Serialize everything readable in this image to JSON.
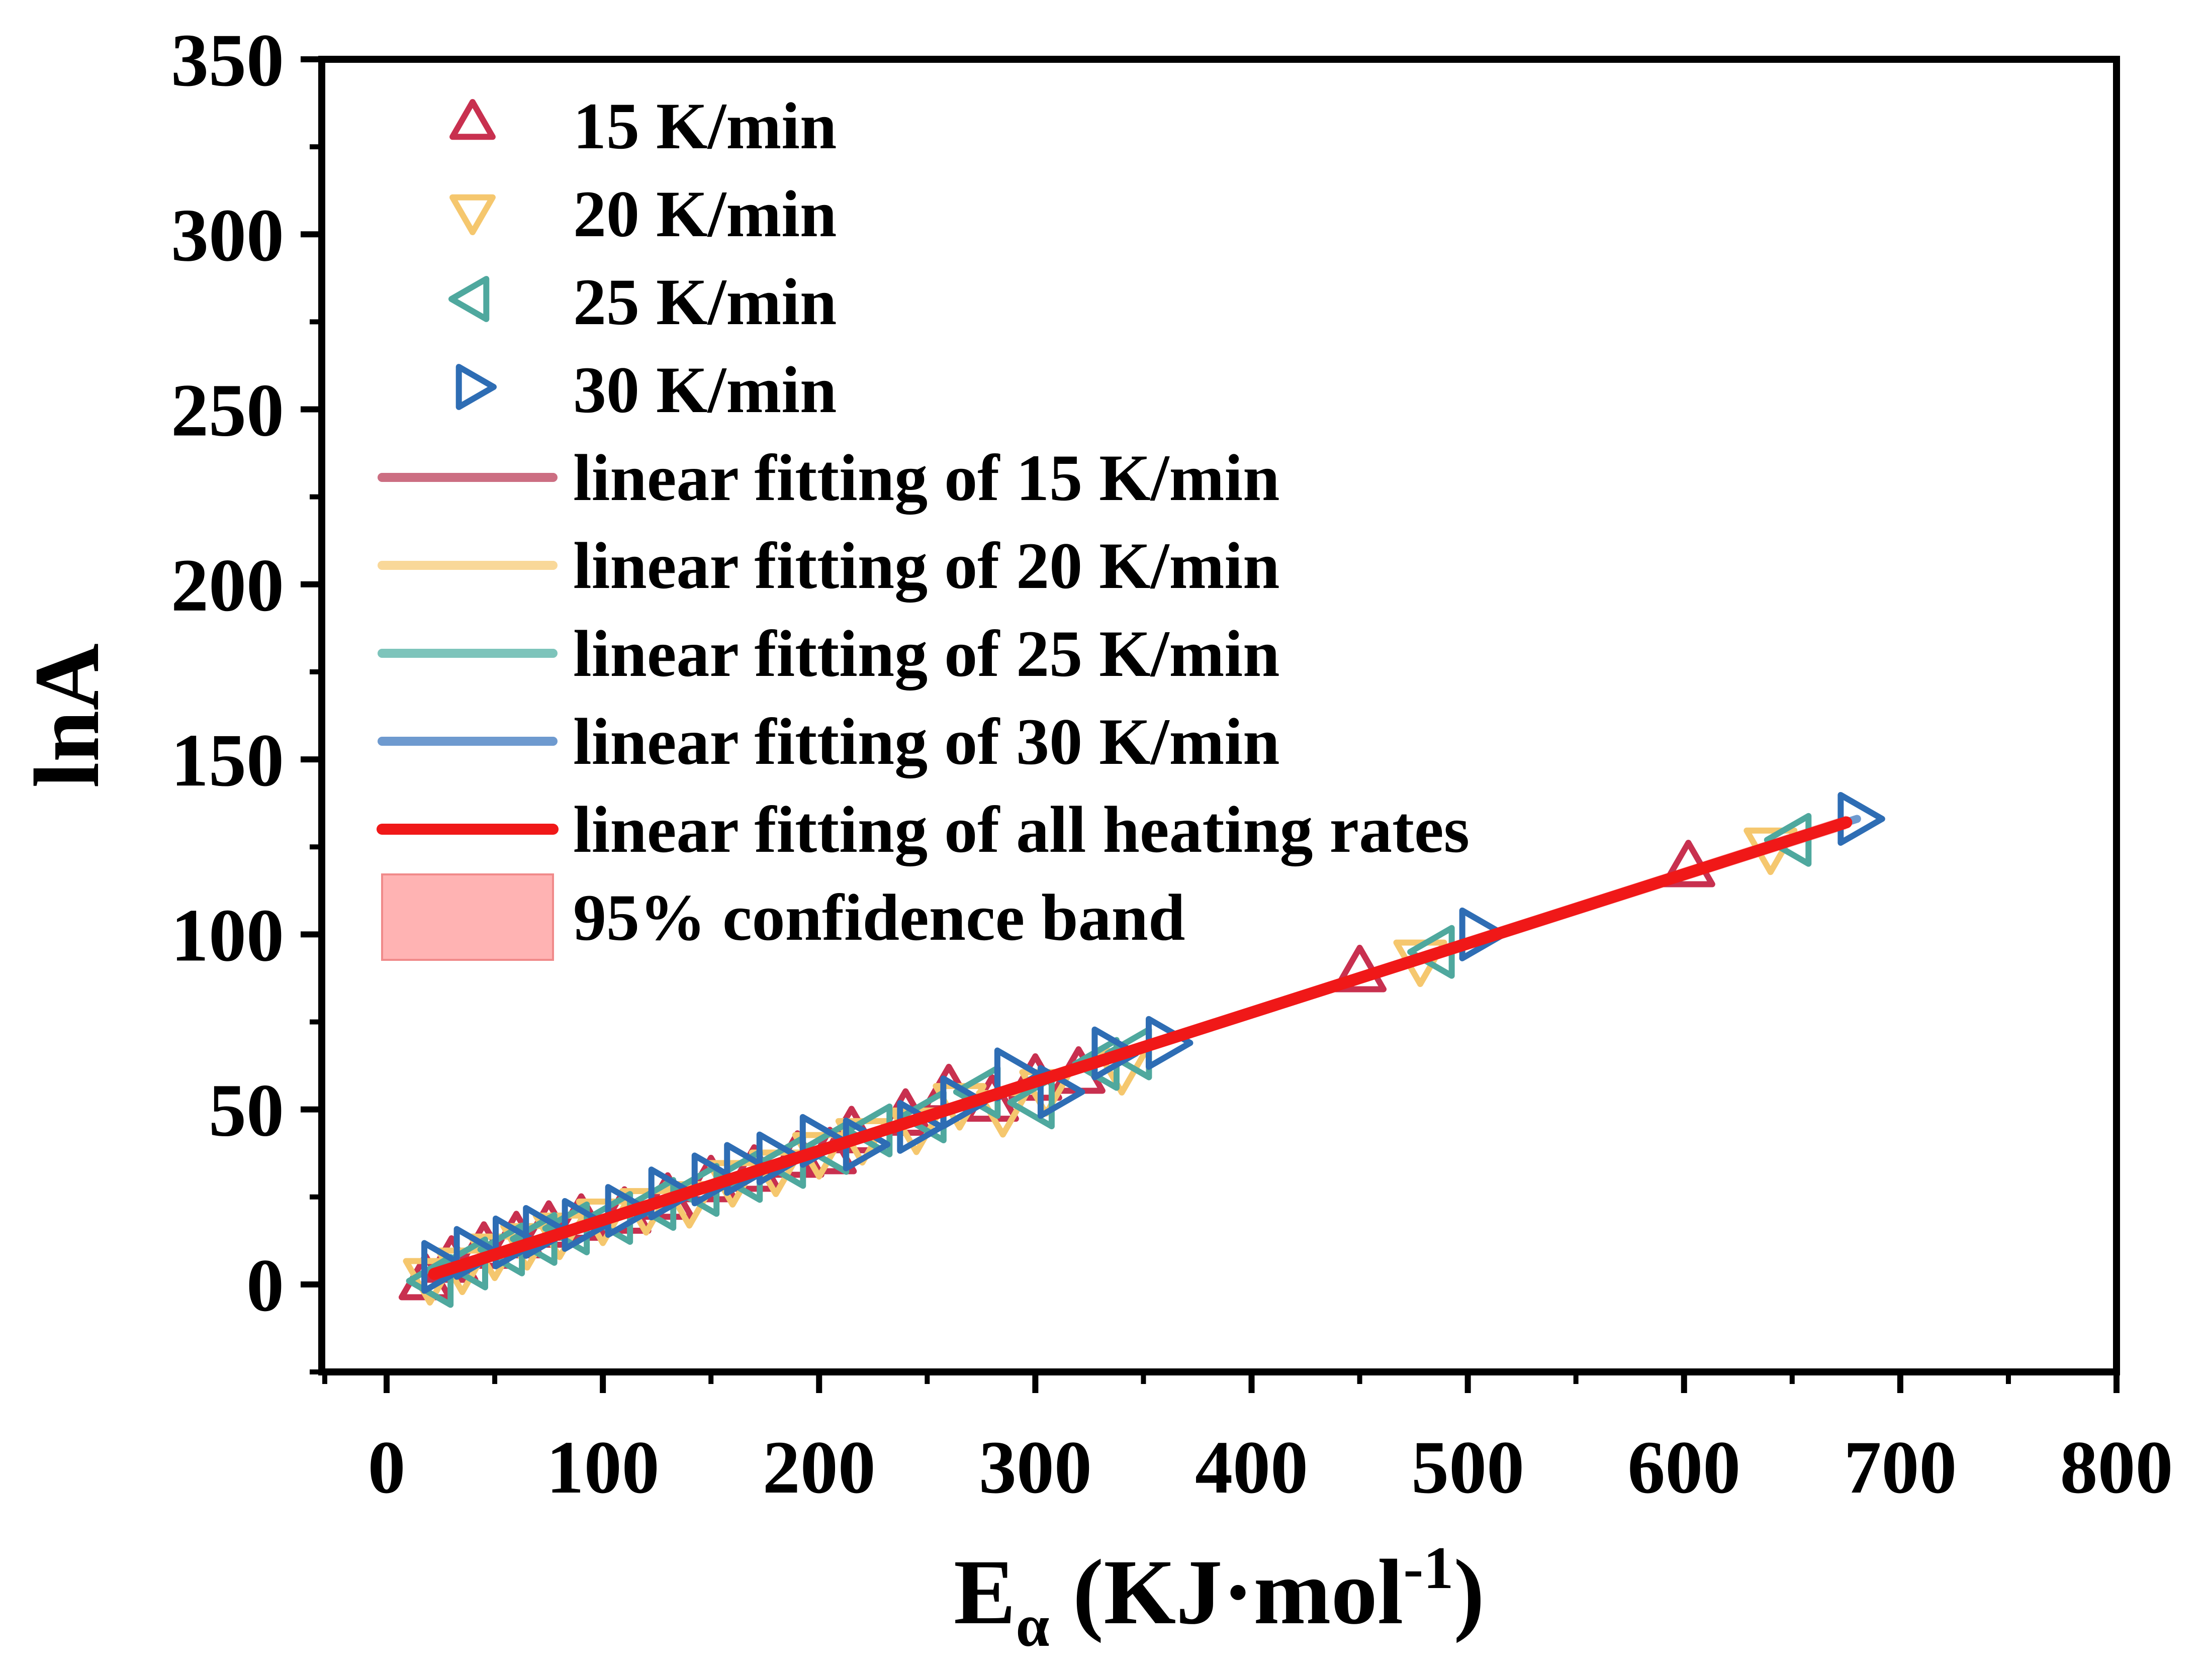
{
  "chart_data": {
    "type": "scatter",
    "title": "",
    "xlabel": {
      "main": "E",
      "sub": "α",
      "rest": " (KJ·mol",
      "sup": "-1",
      "close": ")"
    },
    "ylabel": "lnA",
    "xlim": [
      -30,
      800
    ],
    "ylim": [
      -25,
      350
    ],
    "x_ticks": [
      0,
      100,
      200,
      300,
      400,
      500,
      600,
      700,
      800
    ],
    "y_ticks": [
      0,
      50,
      100,
      150,
      200,
      250,
      300,
      350
    ],
    "x_ticks_text": [
      "0",
      "100",
      "200",
      "300",
      "400",
      "500",
      "600",
      "700",
      "800"
    ],
    "y_ticks_text": [
      "0",
      "50",
      "100",
      "150",
      "200",
      "250",
      "300",
      "350"
    ],
    "legend_position": "top-left",
    "series": [
      {
        "name": "15 K/min",
        "marker": "triangle-up",
        "color": "#C8304F",
        "points": [
          [
            18,
            1
          ],
          [
            30,
            6
          ],
          [
            45,
            10
          ],
          [
            60,
            13
          ],
          [
            75,
            16
          ],
          [
            90,
            18
          ],
          [
            110,
            20
          ],
          [
            130,
            24
          ],
          [
            150,
            29
          ],
          [
            170,
            32
          ],
          [
            190,
            36
          ],
          [
            205,
            37
          ],
          [
            215,
            43
          ],
          [
            240,
            48
          ],
          [
            260,
            55
          ],
          [
            280,
            52
          ],
          [
            300,
            58
          ],
          [
            320,
            60
          ],
          [
            450,
            89
          ],
          [
            602,
            119
          ]
        ]
      },
      {
        "name": "20 K/min",
        "marker": "triangle-down",
        "color": "#F5C76E",
        "points": [
          [
            20,
            2
          ],
          [
            35,
            5
          ],
          [
            50,
            9
          ],
          [
            65,
            12
          ],
          [
            80,
            15
          ],
          [
            100,
            19
          ],
          [
            120,
            22
          ],
          [
            140,
            24
          ],
          [
            160,
            30
          ],
          [
            180,
            33
          ],
          [
            200,
            38
          ],
          [
            220,
            42
          ],
          [
            245,
            45
          ],
          [
            265,
            52
          ],
          [
            285,
            50
          ],
          [
            305,
            56
          ],
          [
            340,
            62
          ],
          [
            478,
            93
          ],
          [
            640,
            125
          ]
        ]
      },
      {
        "name": "25 K/min",
        "marker": "triangle-left",
        "color": "#4FA89E",
        "points": [
          [
            22,
            1
          ],
          [
            38,
            6
          ],
          [
            55,
            10
          ],
          [
            70,
            13
          ],
          [
            85,
            16
          ],
          [
            105,
            19
          ],
          [
            125,
            23
          ],
          [
            145,
            27
          ],
          [
            165,
            31
          ],
          [
            185,
            35
          ],
          [
            205,
            39
          ],
          [
            225,
            44
          ],
          [
            250,
            48
          ],
          [
            275,
            55
          ],
          [
            300,
            52
          ],
          [
            330,
            63
          ],
          [
            345,
            66
          ],
          [
            485,
            95
          ],
          [
            650,
            127
          ]
        ]
      },
      {
        "name": "30 K/min",
        "marker": "triangle-right",
        "color": "#2E6DB4",
        "points": [
          [
            25,
            5
          ],
          [
            40,
            9
          ],
          [
            58,
            12
          ],
          [
            72,
            15
          ],
          [
            90,
            17
          ],
          [
            110,
            21
          ],
          [
            130,
            26
          ],
          [
            150,
            30
          ],
          [
            165,
            33
          ],
          [
            180,
            36
          ],
          [
            200,
            41
          ],
          [
            220,
            40
          ],
          [
            245,
            45
          ],
          [
            265,
            52
          ],
          [
            290,
            60
          ],
          [
            310,
            55
          ],
          [
            335,
            66
          ],
          [
            360,
            69
          ],
          [
            505,
            100
          ],
          [
            680,
            133
          ]
        ]
      }
    ],
    "fits": [
      {
        "name": "linear fitting of 15 K/min",
        "color": "#CC6E82",
        "x": [
          18,
          602
        ],
        "y": [
          2.5,
          118
        ]
      },
      {
        "name": "linear fitting of 20 K/min",
        "color": "#F9D899",
        "x": [
          20,
          640
        ],
        "y": [
          2.7,
          125
        ]
      },
      {
        "name": "linear fitting of 25 K/min",
        "color": "#7DC4BB",
        "x": [
          22,
          650
        ],
        "y": [
          2.8,
          127
        ]
      },
      {
        "name": "linear fitting of 30 K/min",
        "color": "#6E9ACF",
        "x": [
          25,
          680
        ],
        "y": [
          3.2,
          133
        ]
      },
      {
        "name": "linear fitting of all heating rates",
        "color": "#F01818",
        "x": [
          22,
          675
        ],
        "y": [
          3,
          132
        ]
      }
    ],
    "confidence_band": {
      "name": "95% confidence band",
      "color": "#FFB3B3",
      "border": "#F08A8A",
      "x": [
        22,
        675
      ],
      "lower": [
        1.5,
        130
      ],
      "upper": [
        4.5,
        134
      ]
    }
  }
}
